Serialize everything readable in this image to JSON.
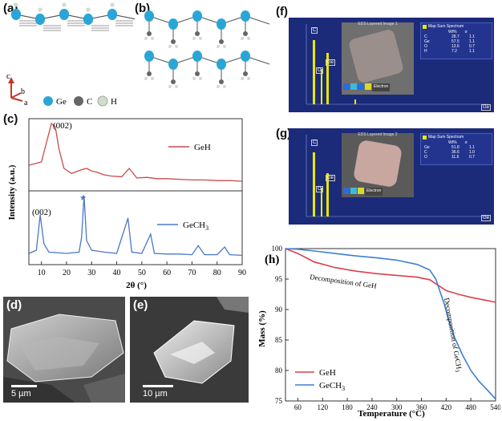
{
  "panel_labels": {
    "a": "(a)",
    "b": "(b)",
    "c": "(c)",
    "d": "(d)",
    "e": "(e)",
    "f": "(f)",
    "g": "(g)",
    "h": "(h)"
  },
  "panel_a": {
    "axis_c": "c",
    "axis_b": "b",
    "axis_a": "a",
    "legend": [
      {
        "label": "Ge",
        "color": "#2aa6d6"
      },
      {
        "label": "C",
        "color": "#666666"
      },
      {
        "label": "H",
        "color": "#cfdccf"
      }
    ]
  },
  "panel_c": {
    "ylabel": "Intensity (a.u.)",
    "xlabel": "2θ (°)",
    "xticks": [
      "10",
      "20",
      "30",
      "40",
      "50",
      "60",
      "70",
      "80",
      "90"
    ],
    "peak_label_top": "(002)",
    "peak_label_bottom": "(002)",
    "star": "★",
    "legend_top": "GeH",
    "legend_bottom": "GeCH",
    "legend_bottom_sub": "3",
    "color_top": "#c84a4a",
    "color_bottom": "#4a78c8"
  },
  "panel_d": {
    "scalebar": "5 µm"
  },
  "panel_e": {
    "scalebar": "10 µm"
  },
  "panel_f": {
    "inset_title": "EDS Layered Image 1",
    "legend_title": "Map Sum Spectrum",
    "cols": [
      "Wt%",
      "σ"
    ],
    "rows": [
      [
        "C",
        "28.7",
        "1.1"
      ],
      [
        "Ge",
        "57.5",
        "1.1"
      ],
      [
        "O",
        "13.6",
        "0.7"
      ],
      [
        "H",
        "7.2",
        "1.1"
      ]
    ],
    "peaks": [
      "C",
      "O",
      "Ge",
      "Ge"
    ],
    "btn": "Electron"
  },
  "panel_g": {
    "inset_title": "EDS Layered Image 2",
    "legend_title": "Map Sum Spectrum",
    "cols": [
      "Wt%",
      "σ"
    ],
    "rows": [
      [
        "Ge",
        "51.8",
        "1.1"
      ],
      [
        "C",
        "36.6",
        "1.0"
      ],
      [
        "O",
        "11.6",
        "0.7"
      ]
    ],
    "peaks": [
      "C",
      "O",
      "Ge",
      "Ge"
    ],
    "btn": "Electron"
  },
  "panel_h": {
    "ylabel": "Mass (%)",
    "xlabel": "Temperature (°C)",
    "xticks": [
      "60",
      "120",
      "180",
      "240",
      "300",
      "360",
      "420",
      "480",
      "540"
    ],
    "yticks": [
      "75",
      "80",
      "85",
      "90",
      "95",
      "100"
    ],
    "annot1": "Decomposition of GeH",
    "annot2": "Decomposition of GeCH",
    "annot2_sub": "3",
    "legend": [
      {
        "label": "GeH",
        "color": "#d9414b"
      },
      {
        "label": "GeCH",
        "sub": "3",
        "color": "#3f7fd0"
      }
    ]
  },
  "chart_data": [
    {
      "type": "line",
      "xlabel": "2θ (°)",
      "ylabel": "Intensity (a.u.)",
      "xlim": [
        5,
        90
      ],
      "series": [
        {
          "name": "GeH",
          "x": [
            5,
            10,
            12,
            14,
            15.5,
            17,
            19,
            22,
            26,
            28,
            30,
            32,
            35,
            38,
            42,
            45,
            48,
            52,
            56,
            60,
            65,
            70,
            75,
            80,
            85,
            90
          ],
          "y": [
            0.35,
            0.4,
            0.7,
            1.0,
            0.95,
            0.6,
            0.3,
            0.22,
            0.28,
            0.3,
            0.26,
            0.24,
            0.2,
            0.18,
            0.17,
            0.3,
            0.15,
            0.16,
            0.14,
            0.14,
            0.13,
            0.12,
            0.12,
            0.11,
            0.11,
            0.1
          ]
        },
        {
          "name": "GeCH3",
          "x": [
            5,
            8,
            9.5,
            11,
            13,
            20,
            25,
            26,
            27,
            28,
            30,
            35,
            40,
            44.5,
            46,
            50,
            53.5,
            55,
            60,
            65,
            70,
            72.5,
            75,
            80,
            83,
            85,
            90
          ],
          "y": [
            0.1,
            0.15,
            0.7,
            0.25,
            0.12,
            0.1,
            0.12,
            0.35,
            1.0,
            0.3,
            0.15,
            0.12,
            0.1,
            0.65,
            0.12,
            0.1,
            0.4,
            0.1,
            0.09,
            0.09,
            0.08,
            0.22,
            0.08,
            0.08,
            0.2,
            0.08,
            0.07
          ]
        }
      ]
    },
    {
      "type": "line",
      "xlabel": "Temperature (°C)",
      "ylabel": "Mass (%)",
      "xlim": [
        30,
        540
      ],
      "ylim": [
        75,
        100
      ],
      "series": [
        {
          "name": "GeH",
          "x": [
            30,
            60,
            100,
            150,
            200,
            250,
            300,
            350,
            380,
            400,
            420,
            450,
            480,
            510,
            540
          ],
          "y": [
            100,
            99.2,
            97.8,
            96.9,
            96.3,
            95.9,
            95.6,
            95.3,
            94.9,
            94,
            93.1,
            92.5,
            92.0,
            91.6,
            91.2
          ]
        },
        {
          "name": "GeCH3",
          "x": [
            30,
            60,
            100,
            150,
            200,
            250,
            300,
            350,
            380,
            395,
            405,
            415,
            425,
            440,
            460,
            480,
            500,
            520,
            540
          ],
          "y": [
            100,
            99.9,
            99.6,
            99.2,
            98.8,
            98.5,
            98.1,
            97.4,
            96.5,
            95.0,
            93.0,
            91.0,
            88.5,
            85.5,
            82.5,
            80.0,
            78.2,
            76.8,
            75.3
          ]
        }
      ]
    }
  ]
}
